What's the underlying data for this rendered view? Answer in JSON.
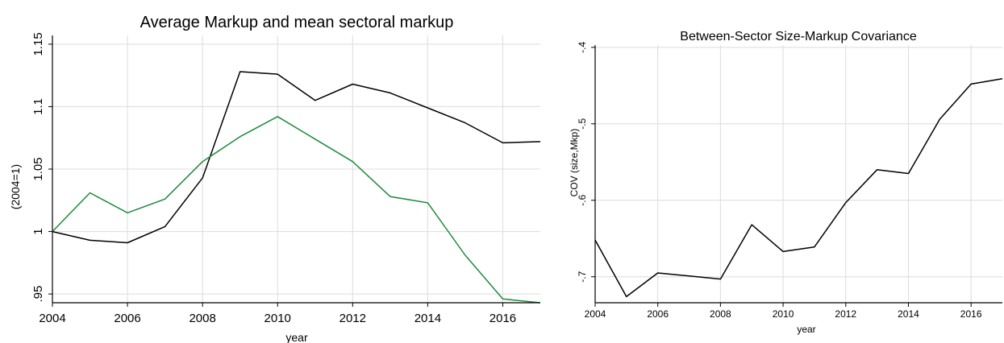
{
  "chart_data": [
    {
      "type": "line",
      "title": "Average Markup and mean sectoral markup",
      "xlabel": "year",
      "ylabel": "(2004=1)",
      "x": [
        2004,
        2005,
        2006,
        2007,
        2008,
        2009,
        2010,
        2011,
        2012,
        2013,
        2014,
        2015,
        2016,
        2017
      ],
      "xticks": [
        "2004",
        "2006",
        "2008",
        "2010",
        "2012",
        "2014",
        "2016"
      ],
      "yticks": [
        "1.15",
        "1.1",
        "1.05",
        "1",
        ".95"
      ],
      "xlim": [
        2004,
        2017
      ],
      "ylim": [
        0.943,
        1.157
      ],
      "grid": true,
      "series": [
        {
          "color": "#000000",
          "values": [
            1.0,
            0.993,
            0.991,
            1.004,
            1.043,
            1.128,
            1.126,
            1.105,
            1.118,
            1.111,
            1.099,
            1.087,
            1.071,
            1.072
          ]
        },
        {
          "color": "#1e8a3c",
          "values": [
            1.0,
            1.031,
            1.015,
            1.026,
            1.056,
            1.076,
            1.092,
            1.074,
            1.056,
            1.028,
            1.023,
            0.981,
            0.946,
            0.943
          ]
        }
      ]
    },
    {
      "type": "line",
      "title": "Between-Sector Size-Markup Covariance",
      "xlabel": "year",
      "ylabel": "COV (size,Mkp)",
      "x": [
        2004,
        2005,
        2006,
        2007,
        2008,
        2009,
        2010,
        2011,
        2012,
        2013,
        2014,
        2015,
        2016,
        2017
      ],
      "xticks": [
        "2004",
        "2006",
        "2008",
        "2010",
        "2012",
        "2014",
        "2016"
      ],
      "yticks": [
        "-.4",
        "-.5",
        "-.6",
        "-.7"
      ],
      "xlim": [
        2004,
        2017
      ],
      "ylim": [
        -0.734,
        -0.397
      ],
      "grid": true,
      "series": [
        {
          "color": "#000000",
          "values": [
            -0.652,
            -0.726,
            -0.695,
            -0.699,
            -0.703,
            -0.632,
            -0.667,
            -0.661,
            -0.603,
            -0.56,
            -0.565,
            -0.494,
            -0.448,
            -0.441
          ]
        }
      ]
    }
  ]
}
